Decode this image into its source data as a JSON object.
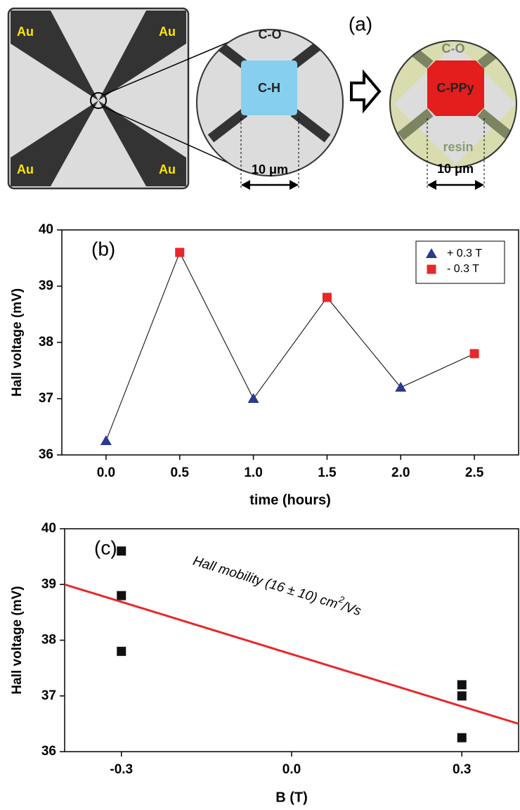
{
  "diagram": {
    "panel_label": "(a)",
    "au_labels": [
      "Au",
      "Au",
      "Au",
      "Au"
    ],
    "left_circle": {
      "top": "C-O",
      "center": "C-H",
      "scale": "10 μm"
    },
    "right_circle": {
      "top": "C-O",
      "center": "C-PPy",
      "bottom": "resin",
      "scale": "10 μm"
    }
  },
  "chart_data": [
    {
      "type": "scatter",
      "annotation": "(b)",
      "x_label": "time (hours)",
      "y_label": "Hall voltage (mV)",
      "xlim": [
        -0.3,
        2.8
      ],
      "ylim": [
        36,
        40
      ],
      "xticks": [
        {
          "value": 0,
          "label": "0.0"
        },
        0.5,
        {
          "value": 1,
          "label": "1.0"
        },
        1.5,
        {
          "value": 2,
          "label": "2.0"
        },
        2.5
      ],
      "yticks": [
        36,
        37,
        38,
        39,
        40
      ],
      "connect_points": true,
      "connect_color": "#000000",
      "legend": "upper right",
      "series": [
        {
          "name": "+ 0.3 T",
          "marker": "triangle",
          "color": "#2b3a8f",
          "x": [
            0,
            1,
            2
          ],
          "values": [
            36.25,
            37.0,
            37.2
          ]
        },
        {
          "name": "- 0.3 T",
          "marker": "square",
          "color": "#e8272a",
          "x": [
            0.5,
            1.5,
            2.5
          ],
          "values": [
            39.6,
            38.8,
            37.8
          ]
        }
      ]
    },
    {
      "type": "scatter",
      "annotation": "(c)",
      "x_label": "B (T)",
      "y_label": "Hall voltage (mV)",
      "xlim": [
        -0.4,
        0.4
      ],
      "ylim": [
        36,
        40
      ],
      "xticks": [
        -0.3,
        {
          "value": 0,
          "label": "0.0"
        },
        0.3
      ],
      "yticks": [
        36,
        37,
        38,
        39,
        40
      ],
      "fit_label": {
        "text": "Hall mobility (16 ± 10) cm",
        "superscript": "2",
        "suffix": "/Vs"
      },
      "series": [
        {
          "marker": "square",
          "color": "#111111",
          "x": [
            -0.3,
            -0.3,
            -0.3,
            0.3,
            0.3,
            0.3
          ],
          "values": [
            39.6,
            38.8,
            37.8,
            37.2,
            37.0,
            36.25
          ]
        },
        {
          "marker": "line",
          "color": "#e8272a",
          "x": [
            -0.4,
            0.4
          ],
          "values": [
            39.0,
            36.5
          ]
        }
      ]
    }
  ]
}
